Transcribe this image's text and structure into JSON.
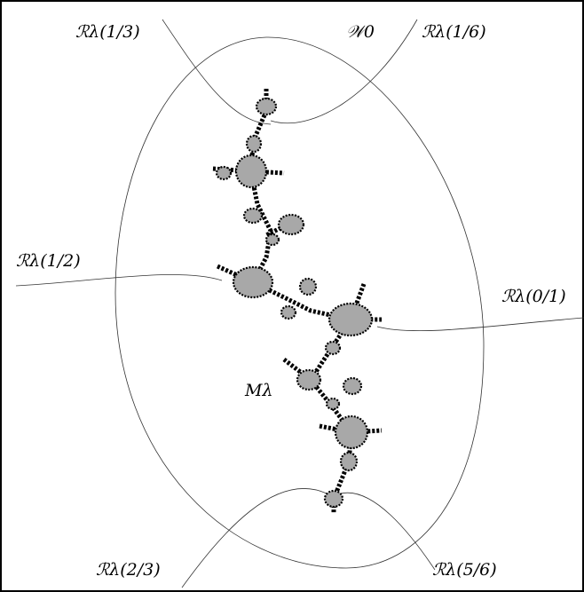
{
  "labels": {
    "ray_1_3": "ℛλ(1/3)",
    "wake": "𝒲0",
    "ray_1_6": "ℛλ(1/6)",
    "ray_1_2": "ℛλ(1/2)",
    "ray_0_1": "ℛλ(0/1)",
    "set": "Mλ",
    "ray_2_3": "ℛλ(2/3)",
    "ray_5_6": "ℛλ(5/6)"
  }
}
